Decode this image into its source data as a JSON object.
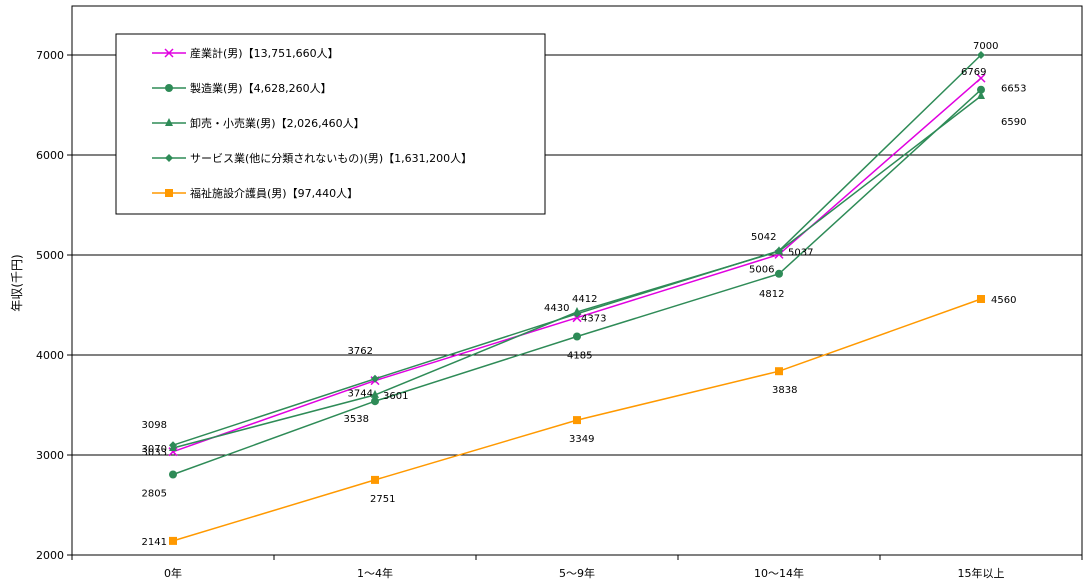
{
  "chart_data": {
    "type": "line",
    "categories": [
      "0年",
      "1～4年",
      "5～9年",
      "10～14年",
      "15年以上"
    ],
    "ylabel": "年収(千円)",
    "ylim": [
      2000,
      7000
    ],
    "yticks": [
      2000,
      3000,
      4000,
      5000,
      6000,
      7000
    ],
    "grid": true,
    "legend_position": "top-left",
    "series": [
      {
        "name": "産業計(男)【13,751,660人】",
        "values": [
          3033,
          3744,
          4373,
          5006,
          6769
        ],
        "color": "#e000e0",
        "marker": "x"
      },
      {
        "name": "製造業(男)【4,628,260人】",
        "values": [
          2805,
          3538,
          4185,
          4812,
          6653
        ],
        "color": "#2e8b57",
        "marker": "circle"
      },
      {
        "name": "卸売・小売業(男)【2,026,460人】",
        "values": [
          3070,
          3601,
          4430,
          5037,
          6590
        ],
        "color": "#2e8b57",
        "marker": "triangle"
      },
      {
        "name": "サービス業(他に分類されないもの)(男)【1,631,200人】",
        "values": [
          3098,
          3762,
          4412,
          5042,
          7000
        ],
        "color": "#2e8b57",
        "marker": "diamond"
      },
      {
        "name": "福祉施設介護員(男)【97,440人】",
        "values": [
          2141,
          2751,
          3349,
          3838,
          4560
        ],
        "color": "#ff9900",
        "marker": "square"
      }
    ]
  }
}
